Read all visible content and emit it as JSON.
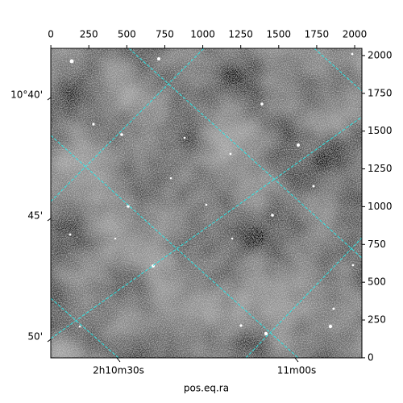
{
  "chart_data": {
    "type": "image",
    "xlabel": "pos.eq.ra",
    "xlim": [
      -0.5,
      2047.5
    ],
    "ylim": [
      -0.5,
      2047.5
    ],
    "xticks": [
      0,
      250,
      500,
      750,
      1000,
      1250,
      1500,
      1750,
      2000
    ],
    "yticks": [
      0,
      250,
      500,
      750,
      1000,
      1250,
      1500,
      1750,
      2000
    ],
    "ra_tick_labels": [
      "2h10m30s",
      "11m00s"
    ],
    "dec_tick_labels": [
      "10°40'",
      "45'",
      "50'"
    ]
  }
}
